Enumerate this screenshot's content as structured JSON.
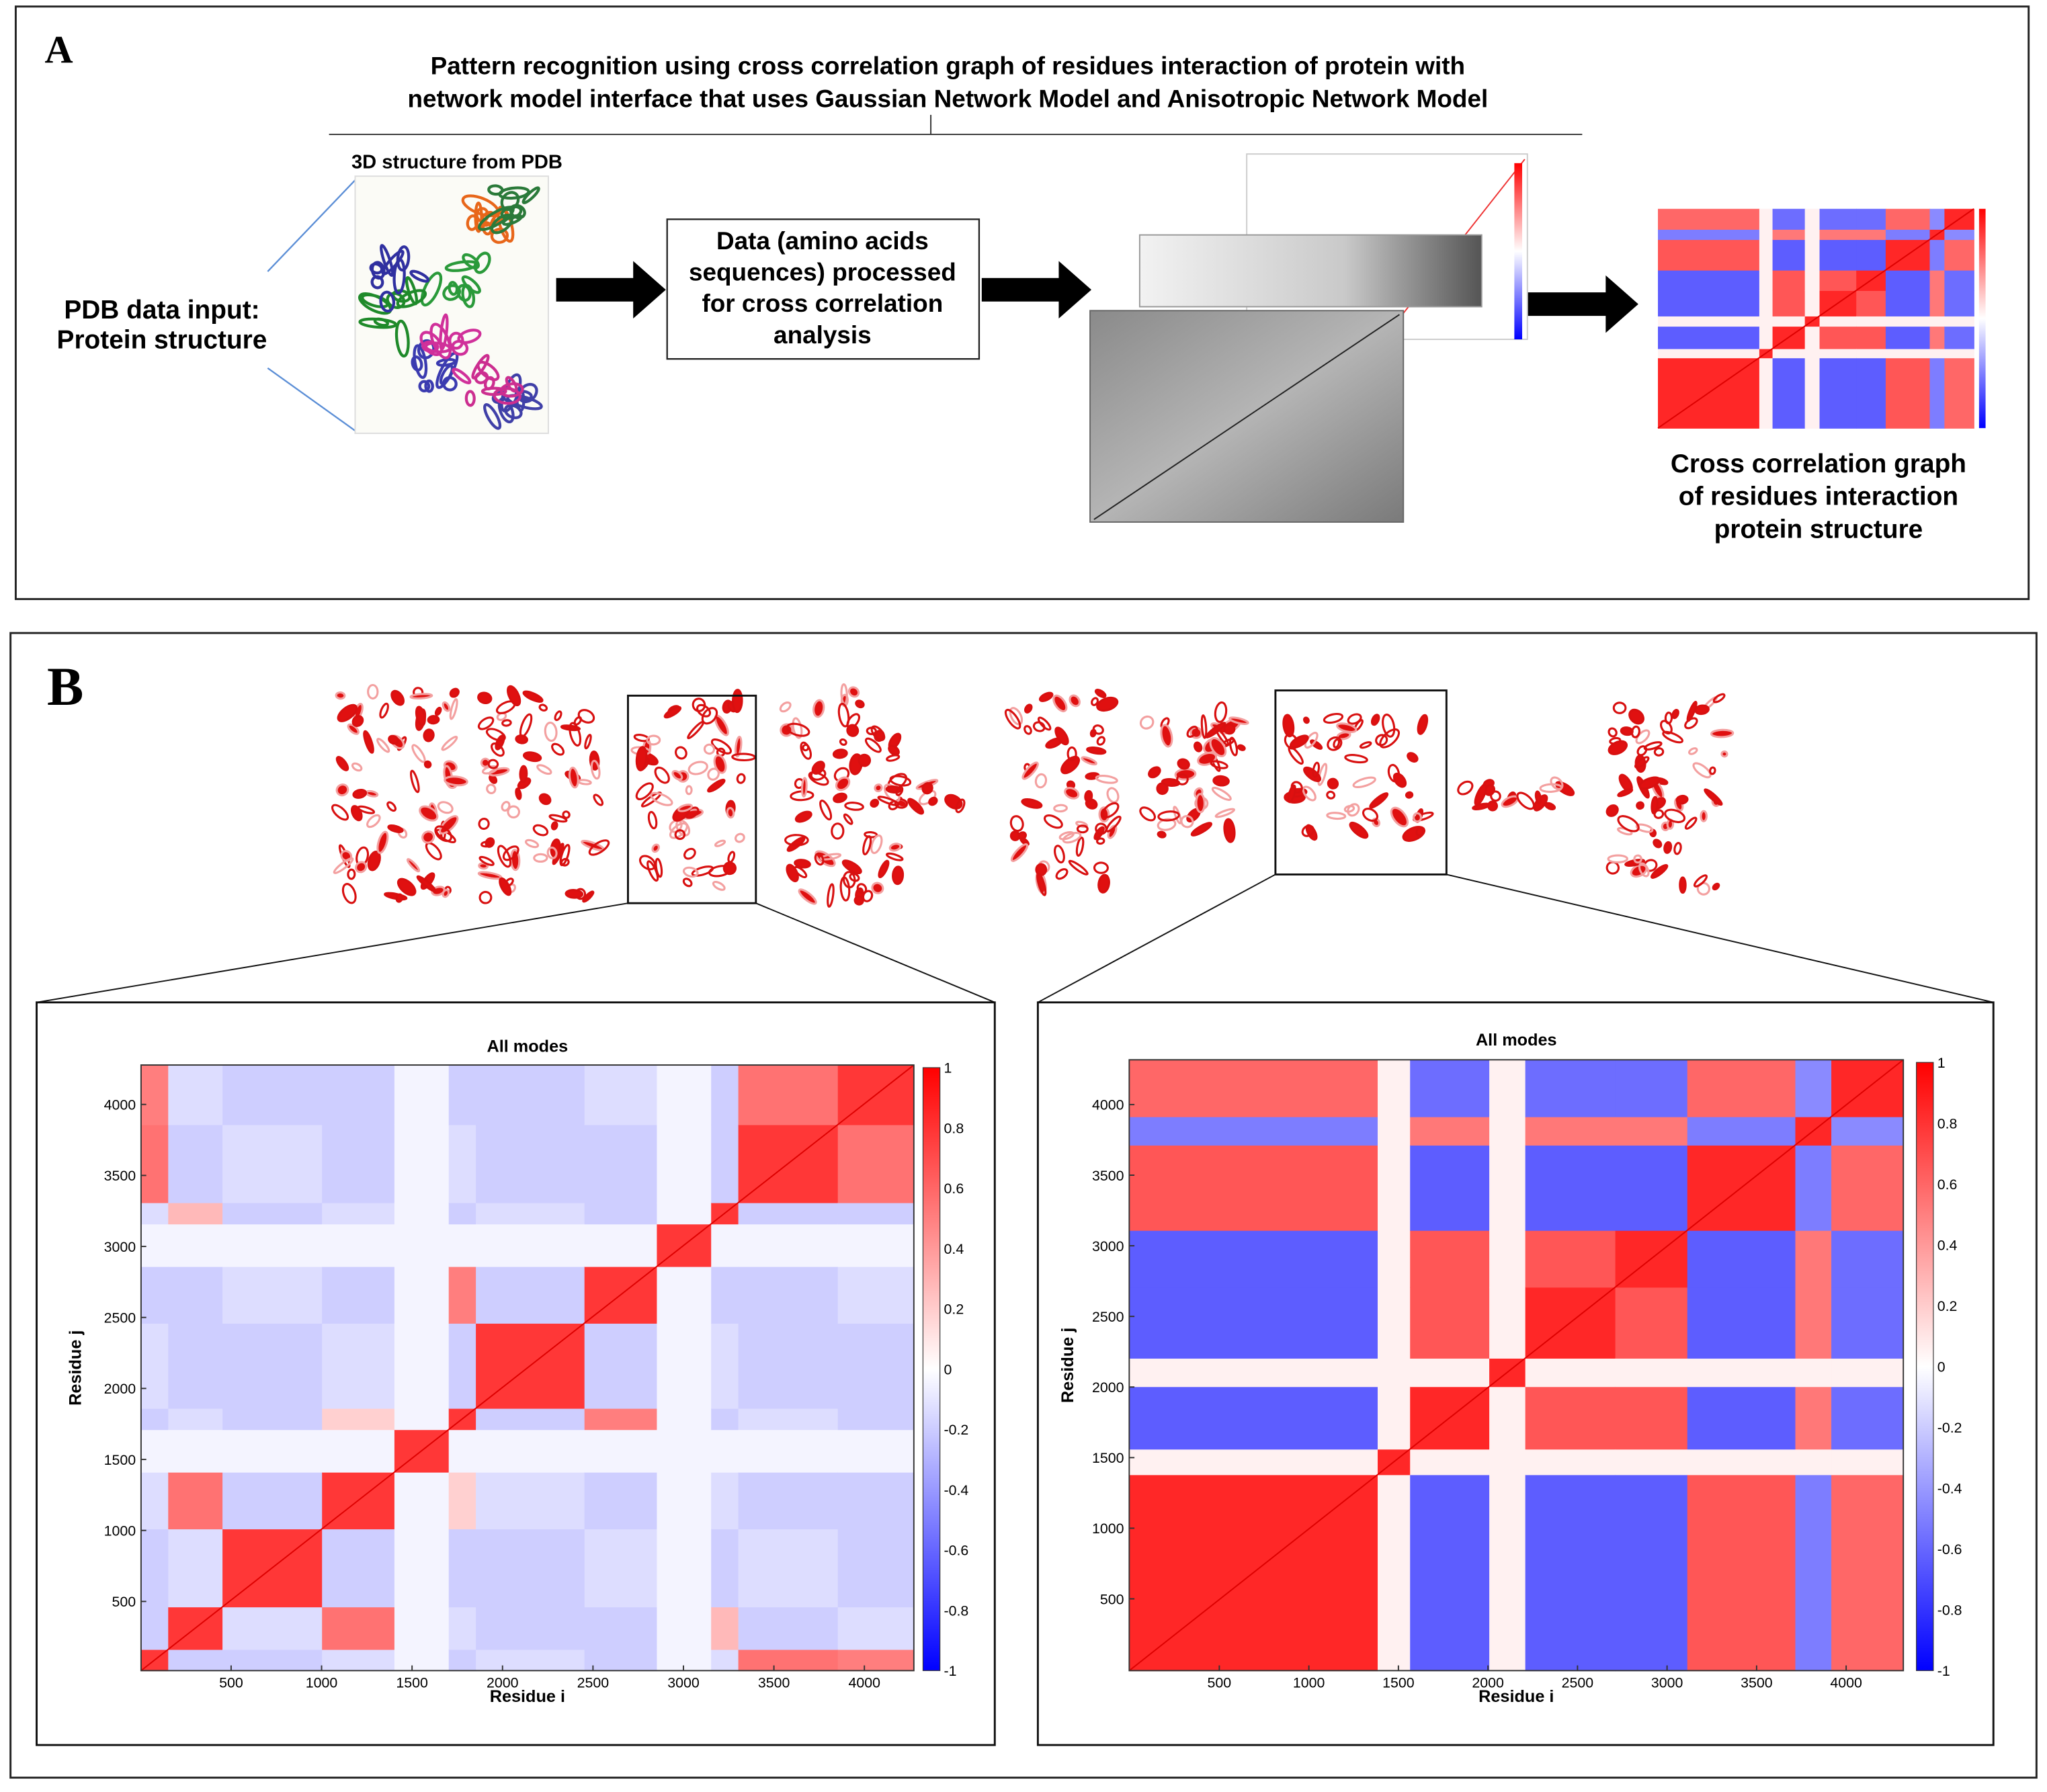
{
  "panel_a": {
    "label": "A",
    "title": [
      "Pattern recognition using cross correlation  graph of residues interaction  of protein with",
      "network model interface that uses Gaussian Network Model  and Anisotropic Network Model"
    ],
    "input": [
      "PDB data input:",
      "Protein structure"
    ],
    "structure_caption": "3D structure from PDB",
    "process": [
      "Data (amino acids",
      "sequences) processed",
      "for cross correlation",
      "analysis"
    ],
    "output": [
      "Cross correlation graph",
      "of residues interaction",
      "protein structure"
    ]
  },
  "panel_b": {
    "label": "B",
    "heatmaps": [
      {
        "title": "All modes",
        "xlabel": "Residue i",
        "ylabel": "Residue j",
        "xticks": [
          500,
          1000,
          1500,
          2000,
          2500,
          3000,
          3500,
          4000
        ],
        "yticks": [
          500,
          1000,
          1500,
          2000,
          2500,
          3000,
          3500,
          4000
        ],
        "colorbar_ticks": [
          1,
          0.8,
          0.6,
          0.4,
          0.2,
          0,
          -0.2,
          -0.4,
          -0.6,
          -0.8,
          -1
        ]
      },
      {
        "title": "All modes",
        "xlabel": "Residue i",
        "ylabel": "Residue j",
        "xticks": [
          500,
          1000,
          1500,
          2000,
          2500,
          3000,
          3500,
          4000
        ],
        "yticks": [
          500,
          1000,
          1500,
          2000,
          2500,
          3000,
          3500,
          4000
        ],
        "colorbar_ticks": [
          1,
          0.8,
          0.6,
          0.4,
          0.2,
          0,
          -0.2,
          -0.4,
          -0.6,
          -0.8,
          -1
        ]
      }
    ]
  }
}
